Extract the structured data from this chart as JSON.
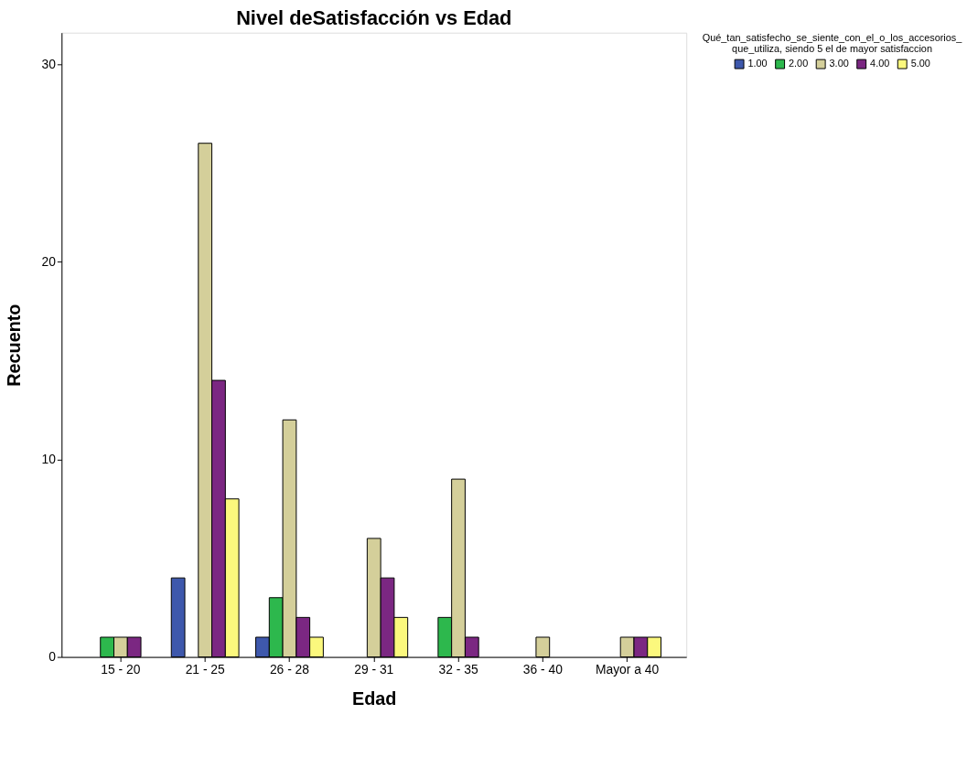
{
  "chart_data": {
    "type": "bar",
    "title": "Nivel deSatisfacción vs Edad",
    "xlabel": "Edad",
    "ylabel": "Recuento",
    "legend_title": "Qué_tan_satisfecho_se_siente_con_el_o_los_accesorios_que_utiliza, siendo 5 el de mayor satisfaccion",
    "categories": [
      "15 - 20",
      "21 - 25",
      "26 - 28",
      "29 - 31",
      "32 - 35",
      "36 - 40",
      "Mayor a 40"
    ],
    "series": [
      {
        "name": "1.00",
        "color": "#3e58ac",
        "values": [
          null,
          4,
          1,
          null,
          null,
          null,
          null
        ]
      },
      {
        "name": "2.00",
        "color": "#2db84d",
        "values": [
          1,
          null,
          3,
          null,
          2,
          null,
          null
        ]
      },
      {
        "name": "3.00",
        "color": "#d4cf9a",
        "values": [
          1,
          26,
          12,
          6,
          9,
          1,
          1
        ]
      },
      {
        "name": "4.00",
        "color": "#7b2782",
        "values": [
          1,
          14,
          2,
          4,
          1,
          null,
          1
        ]
      },
      {
        "name": "5.00",
        "color": "#fbf87d",
        "values": [
          null,
          8,
          1,
          2,
          null,
          null,
          1
        ]
      }
    ],
    "ylim": [
      0,
      31.6
    ],
    "yticks": [
      0,
      10,
      20,
      30
    ],
    "grid": false,
    "legend": "top right"
  }
}
